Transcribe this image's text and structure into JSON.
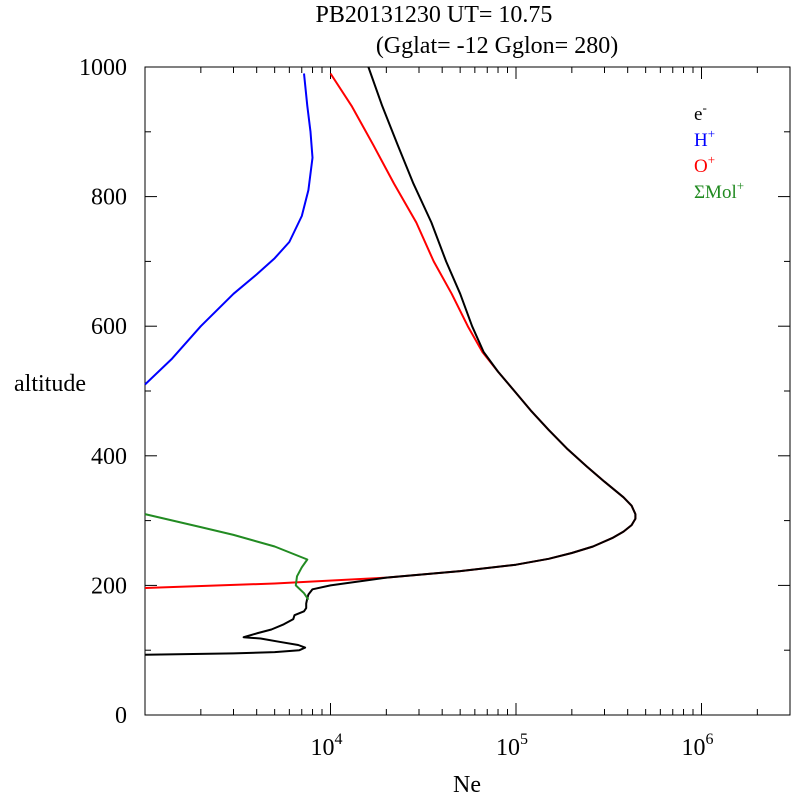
{
  "title_line1": "PB20131230   UT=  10.75",
  "title_line2": "(Gglat= -12   Gglon=  280)",
  "chart_data": {
    "type": "line",
    "xscale": "log",
    "xlim": [
      1000,
      3000000
    ],
    "ylim": [
      0,
      1000
    ],
    "xlabel": "Ne",
    "ylabel": "altitude",
    "yticks": [
      0,
      200,
      400,
      600,
      800,
      1000
    ],
    "ytick_labels": [
      "0",
      "200",
      "400",
      "600",
      "800",
      "1000"
    ],
    "xticks": [
      10000,
      100000,
      1000000
    ],
    "xtick_base": "10",
    "xtick_exps": [
      "4",
      "5",
      "6"
    ],
    "legend_position": "top-right",
    "legend": [
      {
        "base": "e",
        "sup": "-",
        "color": "#000000"
      },
      {
        "base": "H",
        "sup": "+",
        "color": "#0000ff"
      },
      {
        "base": "O",
        "sup": "+",
        "color": "#ff0000"
      },
      {
        "base": "ΣMol",
        "sup": "+",
        "color": "#228b22"
      }
    ],
    "series": [
      {
        "name": "O+",
        "color": "#ff0000",
        "points": [
          [
            1000,
            196
          ],
          [
            5000,
            203
          ],
          [
            20000,
            212
          ],
          [
            50000,
            222
          ],
          [
            100000,
            232
          ],
          [
            150000,
            241
          ],
          [
            200000,
            250
          ],
          [
            260000,
            260
          ],
          [
            330000,
            273
          ],
          [
            380000,
            283
          ],
          [
            420000,
            293
          ],
          [
            440000,
            303
          ],
          [
            440000,
            310
          ],
          [
            420000,
            323
          ],
          [
            380000,
            336
          ],
          [
            300000,
            360
          ],
          [
            240000,
            384
          ],
          [
            190000,
            410
          ],
          [
            150000,
            440
          ],
          [
            120000,
            470
          ],
          [
            98000,
            500
          ],
          [
            80000,
            530
          ],
          [
            66000,
            560
          ],
          [
            55000,
            600
          ],
          [
            45000,
            650
          ],
          [
            36000,
            700
          ],
          [
            29000,
            760
          ],
          [
            22000,
            820
          ],
          [
            17000,
            880
          ],
          [
            13000,
            940
          ],
          [
            10000,
            990
          ]
        ]
      },
      {
        "name": "e-",
        "color": "#000000",
        "points": [
          [
            1000,
            93
          ],
          [
            3000,
            95
          ],
          [
            5000,
            97
          ],
          [
            6800,
            100
          ],
          [
            7300,
            104
          ],
          [
            6700,
            108
          ],
          [
            5300,
            113
          ],
          [
            4200,
            118
          ],
          [
            3400,
            120
          ],
          [
            4000,
            126
          ],
          [
            4800,
            132
          ],
          [
            5600,
            140
          ],
          [
            6300,
            148
          ],
          [
            6400,
            154
          ],
          [
            7200,
            160
          ],
          [
            7400,
            165
          ],
          [
            7400,
            172
          ],
          [
            7500,
            180
          ],
          [
            7600,
            186
          ],
          [
            8000,
            194
          ],
          [
            10000,
            200
          ],
          [
            20000,
            212
          ],
          [
            50000,
            222
          ],
          [
            100000,
            232
          ],
          [
            150000,
            241
          ],
          [
            200000,
            250
          ],
          [
            260000,
            260
          ],
          [
            330000,
            273
          ],
          [
            380000,
            283
          ],
          [
            420000,
            293
          ],
          [
            440000,
            303
          ],
          [
            440000,
            310
          ],
          [
            420000,
            323
          ],
          [
            380000,
            336
          ],
          [
            300000,
            360
          ],
          [
            240000,
            384
          ],
          [
            190000,
            410
          ],
          [
            150000,
            440
          ],
          [
            120000,
            470
          ],
          [
            98000,
            500
          ],
          [
            80000,
            530
          ],
          [
            67000,
            560
          ],
          [
            58000,
            600
          ],
          [
            50000,
            650
          ],
          [
            42000,
            700
          ],
          [
            35000,
            760
          ],
          [
            28000,
            820
          ],
          [
            23000,
            880
          ],
          [
            19000,
            940
          ],
          [
            16000,
            1000
          ]
        ]
      },
      {
        "name": "H+",
        "color": "#0000ff",
        "points": [
          [
            1000,
            510
          ],
          [
            1400,
            550
          ],
          [
            2000,
            600
          ],
          [
            3000,
            650
          ],
          [
            4000,
            680
          ],
          [
            5000,
            705
          ],
          [
            6000,
            730
          ],
          [
            7000,
            770
          ],
          [
            7600,
            810
          ],
          [
            8000,
            860
          ],
          [
            7800,
            900
          ],
          [
            7500,
            940
          ],
          [
            7200,
            990
          ]
        ]
      },
      {
        "name": "ΣMol+",
        "color": "#228b22",
        "points": [
          [
            1000,
            310
          ],
          [
            2000,
            290
          ],
          [
            3000,
            278
          ],
          [
            5000,
            260
          ],
          [
            7500,
            240
          ],
          [
            7000,
            228
          ],
          [
            6600,
            214
          ],
          [
            6500,
            200
          ],
          [
            7200,
            188
          ],
          [
            7600,
            178
          ]
        ]
      }
    ]
  }
}
